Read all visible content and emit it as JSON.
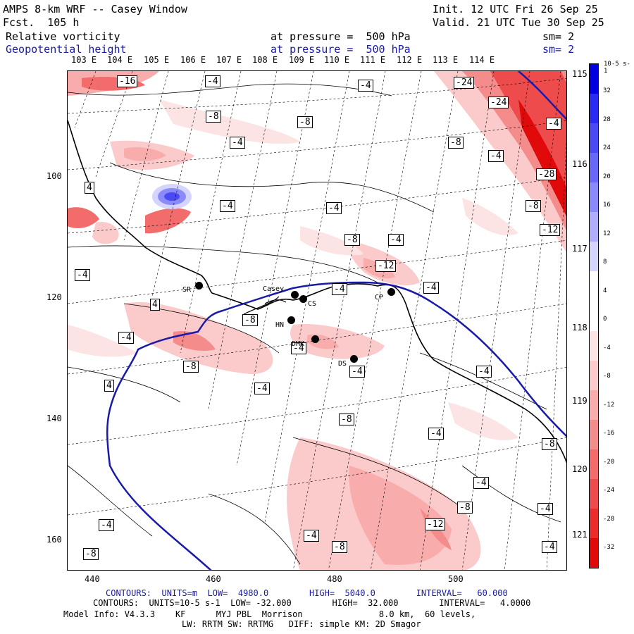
{
  "header": {
    "title": "AMPS 8-km WRF -- Casey Window",
    "init": "Init. 12 UTC Fri 26 Sep 25",
    "fcst": "Fcst.  105 h",
    "valid": "Valid. 21 UTC Tue 30 Sep 25",
    "field1": "Relative vorticity",
    "field1_level": "at pressure =  500 hPa",
    "field1_sm": "sm= 2",
    "field2": "Geopotential height",
    "field2_level": "at pressure =  500 hPa",
    "field2_sm": "sm= 2"
  },
  "axes": {
    "top_lon": [
      "103 E",
      "104 E",
      "105 E",
      "106 E",
      "107 E",
      "108 E",
      "109 E",
      "110 E",
      "111 E",
      "112 E",
      "113 E",
      "114 E"
    ],
    "right_lon": [
      "115 E",
      "116 E",
      "117 E",
      "118 E",
      "119 E",
      "120 E",
      "121 E"
    ],
    "left_y": [
      "100",
      "120",
      "140",
      "160"
    ],
    "bottom_x": [
      "440",
      "460",
      "480",
      "500"
    ]
  },
  "stations": [
    {
      "name": "SR"
    },
    {
      "name": "Casey"
    },
    {
      "name": "CS"
    },
    {
      "name": "HN"
    },
    {
      "name": "DMK"
    },
    {
      "name": "DS"
    },
    {
      "name": "CP"
    }
  ],
  "contour_labels": [
    "-16",
    "-4",
    "-8",
    "-4",
    "-24",
    "-24",
    "-8",
    "-4",
    "-8",
    "-4",
    "-4",
    "4",
    "-4",
    "-4",
    "-28",
    "-8",
    "-12",
    "-4",
    "-4",
    "-8",
    "-4",
    "-12",
    "-4",
    "4",
    "-8",
    "-4",
    "-4",
    "-8",
    "-4",
    "4",
    "-4",
    "-4",
    "-8",
    "-4",
    "-8",
    "-4",
    "-8",
    "-12",
    "-4",
    "-8",
    "-4",
    "-4",
    "-4",
    "-8"
  ],
  "colorbar": {
    "unit": "10-5 s-1",
    "ticks": [
      "32",
      "28",
      "24",
      "20",
      "16",
      "12",
      "8",
      "4",
      "0",
      "-4",
      "-8",
      "-12",
      "-16",
      "-20",
      "-24",
      "-28",
      "-32"
    ],
    "colors": [
      "#0000e0",
      "#2a2af0",
      "#4a4af5",
      "#6868f8",
      "#8a8afa",
      "#aeaefc",
      "#d4d4fe",
      "#ffffff",
      "#ffffff",
      "#fde4e4",
      "#fbcaca",
      "#f9acac",
      "#f58c8c",
      "#f26c6c",
      "#ee4c4c",
      "#ea2c2c",
      "#e00a0a"
    ]
  },
  "footer": {
    "line1": "CONTOURS:  UNITS=m  LOW=  4980.0        HIGH=  5040.0        INTERVAL=   60.000",
    "line2": "CONTOURS:  UNITS=10-5 s-1  LOW= -32.000        HIGH=  32.000        INTERVAL=   4.0000",
    "line3": "Model Info: V4.3.3    KF      MYJ PBL  Morrison               8.0 km,  60 levels,",
    "line4": "LW: RRTM SW: RRTMG   DIFF: simple KM: 2D Smagor"
  }
}
